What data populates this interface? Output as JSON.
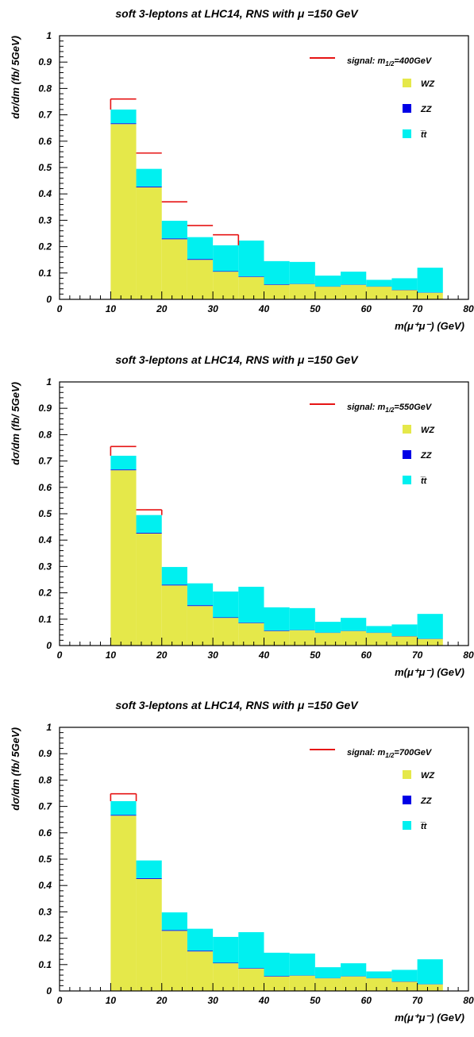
{
  "figure": {
    "bin_edges": [
      10,
      15,
      20,
      25,
      30,
      35,
      40,
      45,
      50,
      55,
      60,
      65,
      70,
      75
    ],
    "xlim": [
      0,
      80
    ],
    "ylim": [
      0,
      1
    ],
    "x_ticks": [
      0,
      10,
      20,
      30,
      40,
      50,
      60,
      70,
      80
    ],
    "x_tick_labels": [
      "0",
      "10",
      "20",
      "30",
      "40",
      "50",
      "60",
      "70",
      "80"
    ],
    "y_ticks": [
      0,
      0.1,
      0.2,
      0.3,
      0.4,
      0.5,
      0.6,
      0.7,
      0.8,
      0.9,
      1
    ],
    "y_tick_labels": [
      "0",
      "0.1",
      "0.2",
      "0.3",
      "0.4",
      "0.5",
      "0.6",
      "0.7",
      "0.8",
      "0.9",
      "1"
    ],
    "colors": {
      "wz": "#e5e84a",
      "zz": "#0000e6",
      "tt": "#00f0f0",
      "signal": "#e61414"
    },
    "legend_placement": "top-right"
  },
  "chart_data": [
    {
      "type": "bar",
      "title": "soft 3-leptons at LHC14, RNS with μ =150 GeV",
      "xlabel": "m(μ⁺μ⁻)  (GeV)",
      "ylabel": "dσ/dm  (fb/ 5GeV)",
      "legend": {
        "signal": "signal: m",
        "signal_sub": "1/2",
        "signal_value": "=400GeV",
        "wz": "WZ",
        "zz": "ZZ",
        "tt": "t̅t"
      },
      "series": [
        {
          "name": "WZ",
          "values": [
            0.665,
            0.425,
            0.228,
            0.15,
            0.105,
            0.085,
            0.055,
            0.058,
            0.048,
            0.055,
            0.048,
            0.035,
            0.025
          ]
        },
        {
          "name": "ZZ",
          "values": [
            0.003,
            0.003,
            0.003,
            0.003,
            0.002,
            0.002,
            0.002,
            0.001,
            0.001,
            0.001,
            0.001,
            0.001,
            0.001
          ]
        },
        {
          "name": "t̅t",
          "values": [
            0.052,
            0.067,
            0.067,
            0.083,
            0.098,
            0.136,
            0.088,
            0.083,
            0.041,
            0.049,
            0.025,
            0.044,
            0.094
          ]
        },
        {
          "name": "signal",
          "values": [
            0.76,
            0.555,
            0.37,
            0.28,
            0.245,
            0.222,
            0.145,
            0.142,
            0.09,
            0.105,
            0.074,
            0.08,
            0.12
          ]
        }
      ]
    },
    {
      "type": "bar",
      "title": "soft 3-leptons at LHC14, RNS with μ =150 GeV",
      "xlabel": "m(μ⁺μ⁻)  (GeV)",
      "ylabel": "dσ/dm  (fb/ 5GeV)",
      "legend": {
        "signal": "signal: m",
        "signal_sub": "1/2",
        "signal_value": "=550GeV",
        "wz": "WZ",
        "zz": "ZZ",
        "tt": "t̅t"
      },
      "series": [
        {
          "name": "WZ",
          "values": [
            0.665,
            0.425,
            0.228,
            0.15,
            0.105,
            0.085,
            0.055,
            0.058,
            0.048,
            0.055,
            0.048,
            0.035,
            0.025
          ]
        },
        {
          "name": "ZZ",
          "values": [
            0.003,
            0.003,
            0.003,
            0.003,
            0.002,
            0.002,
            0.002,
            0.001,
            0.001,
            0.001,
            0.001,
            0.001,
            0.001
          ]
        },
        {
          "name": "t̅t",
          "values": [
            0.052,
            0.067,
            0.067,
            0.083,
            0.098,
            0.136,
            0.088,
            0.083,
            0.041,
            0.049,
            0.025,
            0.044,
            0.094
          ]
        },
        {
          "name": "signal",
          "values": [
            0.755,
            0.515,
            0.3,
            0.236,
            0.205,
            0.223,
            0.145,
            0.142,
            0.09,
            0.105,
            0.074,
            0.08,
            0.12
          ]
        }
      ]
    },
    {
      "type": "bar",
      "title": "soft 3-leptons at LHC14, RNS with μ =150 GeV",
      "xlabel": "m(μ⁺μ⁻)  (GeV)",
      "ylabel": "dσ/dm  (fb/ 5GeV)",
      "legend": {
        "signal": "signal: m",
        "signal_sub": "1/2",
        "signal_value": "=700GeV",
        "wz": "WZ",
        "zz": "ZZ",
        "tt": "t̅t"
      },
      "series": [
        {
          "name": "WZ",
          "values": [
            0.665,
            0.425,
            0.228,
            0.15,
            0.105,
            0.085,
            0.055,
            0.058,
            0.048,
            0.055,
            0.048,
            0.035,
            0.025
          ]
        },
        {
          "name": "ZZ",
          "values": [
            0.003,
            0.003,
            0.003,
            0.003,
            0.002,
            0.002,
            0.002,
            0.001,
            0.001,
            0.001,
            0.001,
            0.001,
            0.001
          ]
        },
        {
          "name": "t̅t",
          "values": [
            0.052,
            0.067,
            0.067,
            0.083,
            0.098,
            0.136,
            0.088,
            0.083,
            0.041,
            0.049,
            0.025,
            0.044,
            0.094
          ]
        },
        {
          "name": "signal",
          "values": [
            0.748,
            0.495,
            0.296,
            0.236,
            0.205,
            0.223,
            0.145,
            0.142,
            0.09,
            0.105,
            0.074,
            0.08,
            0.12
          ]
        }
      ]
    }
  ]
}
